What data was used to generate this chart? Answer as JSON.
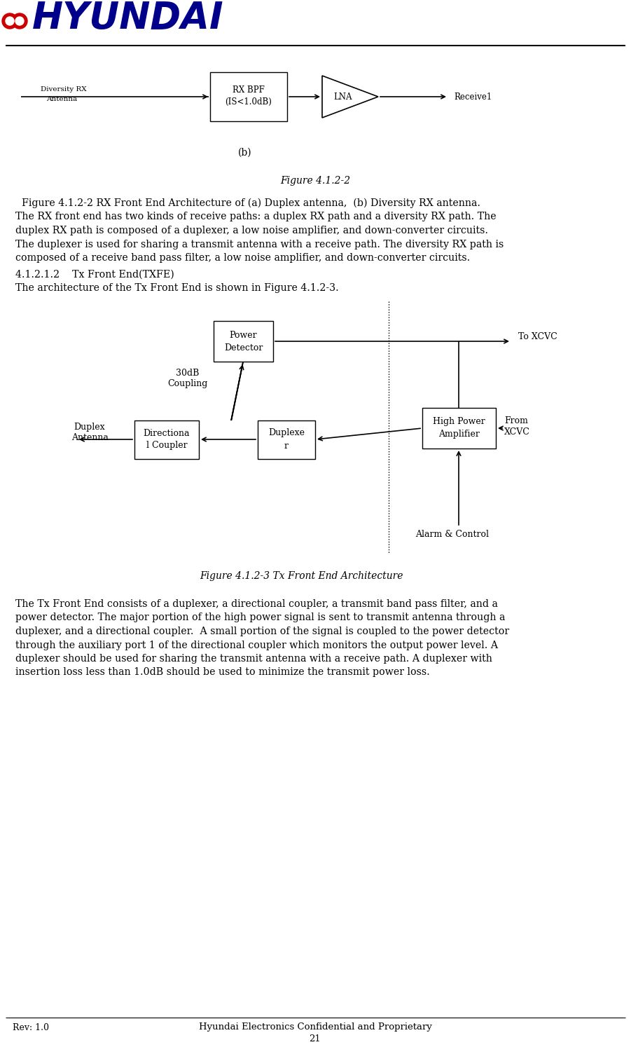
{
  "bg_color": "#ffffff",
  "fig_width": 9.01,
  "fig_height": 14.94,
  "footer_rev": "Rev: 1.0",
  "footer_company": "Hyundai Electronics Confidential and Proprietary",
  "footer_page": "21",
  "figure_caption_1": "Figure 4.1.2-2",
  "figure_caption_2": "  Figure 4.1.2-2 RX Front End Architecture of (a) Duplex antenna,  (b) Diversity RX antenna.",
  "para1_line1": "The RX front end has two kinds of receive paths: a duplex RX path and a diversity RX path. The",
  "para1_line2": "duplex RX path is composed of a duplexer, a low noise amplifier, and down-converter circuits.",
  "para1_line3": "The duplexer is used for sharing a transmit antenna with a receive path. The diversity RX path is",
  "para1_line4": "composed of a receive band pass filter, a low noise amplifier, and down-converter circuits.",
  "section_heading": "4.1.2.1.2    Tx Front End(TXFE)",
  "section_line": "The architecture of the Tx Front End is shown in Figure 4.1.2-3.",
  "figure_caption_3": "Figure 4.1.2-3 Tx Front End Architecture",
  "para2_line1": "The Tx Front End consists of a duplexer, a directional coupler, a transmit band pass filter, and a",
  "para2_line2": "power detector. The major portion of the high power signal is sent to transmit antenna through a",
  "para2_line3": "duplexer, and a directional coupler.  A small portion of the signal is coupled to the power detector",
  "para2_line4": "through the auxiliary port 1 of the directional coupler which monitors the output power level. A",
  "para2_line5": "duplexer should be used for sharing the transmit antenna with a receive path. A duplexer with",
  "para2_line6": "insertion loss less than 1.0dB should be used to minimize the transmit power loss."
}
